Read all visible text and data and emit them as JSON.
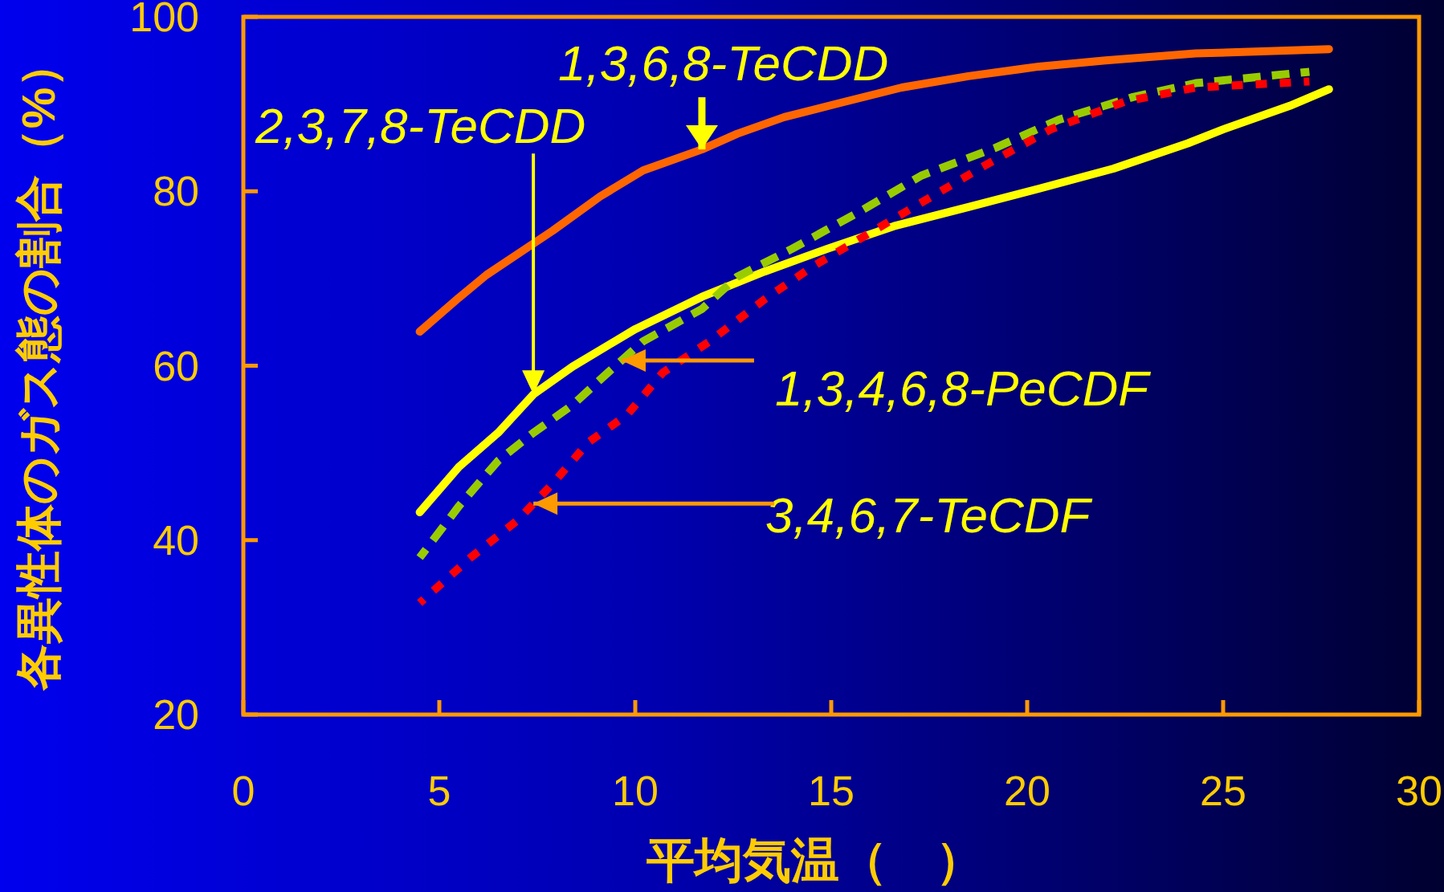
{
  "chart_data": {
    "type": "line",
    "xlabel": "平均気温（　）",
    "ylabel": "各異性体のガス態の割合（%）",
    "xlim": [
      0,
      30
    ],
    "ylim": [
      20,
      100
    ],
    "xticks": [
      0,
      5,
      10,
      15,
      20,
      25,
      30
    ],
    "yticks": [
      20,
      40,
      60,
      80,
      100
    ],
    "grid": false,
    "marker": "none",
    "series": [
      {
        "color": "#ff6600",
        "line_style": "solid",
        "x": [
          4.5,
          5.5,
          6.2,
          7.2,
          7.9,
          9.1,
          10.2,
          11.7,
          12.6,
          13.8,
          15.2,
          16.8,
          18.5,
          20.3,
          22.0,
          24.3,
          27.7
        ],
        "values": [
          63.9,
          67.8,
          70.4,
          73.4,
          75.5,
          79.4,
          82.4,
          84.8,
          86.6,
          88.5,
          90.1,
          91.9,
          93.2,
          94.3,
          95.0,
          95.8,
          96.3
        ]
      },
      {
        "color": "#ffff00",
        "line_style": "solid",
        "x": [
          4.5,
          5.5,
          6.5,
          7.4,
          8.4,
          10.0,
          11.7,
          13.3,
          14.9,
          16.6,
          18.5,
          20.3,
          22.2,
          24.1,
          25.0,
          26.7,
          27.7
        ],
        "values": [
          43.2,
          48.4,
          52.3,
          56.7,
          59.9,
          64.2,
          67.9,
          70.8,
          73.4,
          76.0,
          78.2,
          80.3,
          82.6,
          85.5,
          87.1,
          89.8,
          91.7
        ]
      },
      {
        "color": "#99cc00",
        "line_style": "dashed",
        "x": [
          4.5,
          5.5,
          6.5,
          7.4,
          8.4,
          9.3,
          10.2,
          11.7,
          12.6,
          14.0,
          15.7,
          17.3,
          19.2,
          20.8,
          22.7,
          24.3,
          27.2
        ],
        "values": [
          38.0,
          43.9,
          49.1,
          52.3,
          55.5,
          59.2,
          62.8,
          66.5,
          70.2,
          73.4,
          77.6,
          81.8,
          85.0,
          88.2,
          90.8,
          92.4,
          93.7
        ]
      },
      {
        "color": "#ff0000",
        "line_style": "dotted",
        "x": [
          4.5,
          5.8,
          7.0,
          7.9,
          8.8,
          9.8,
          10.7,
          11.9,
          13.3,
          14.5,
          15.9,
          17.3,
          18.9,
          20.6,
          22.5,
          24.3,
          27.2
        ],
        "values": [
          32.8,
          38.0,
          42.3,
          46.5,
          51.2,
          54.4,
          59.2,
          62.8,
          67.6,
          71.3,
          75.0,
          78.7,
          82.9,
          87.1,
          90.3,
          91.9,
          92.6
        ]
      }
    ],
    "annotations": [
      {
        "text": "1,3,6,8-TeCDD",
        "x": 11.7,
        "y": 84.8
      },
      {
        "text": "2,3,7,8-TeCDD",
        "x": 7.4,
        "y": 56.7
      },
      {
        "text": "1,3,4,6,8-PeCDF",
        "x": 9.65,
        "y": 60.6
      },
      {
        "text": "3,4,6,7-TeCDF",
        "x": 7.4,
        "y": 44.2
      }
    ]
  }
}
